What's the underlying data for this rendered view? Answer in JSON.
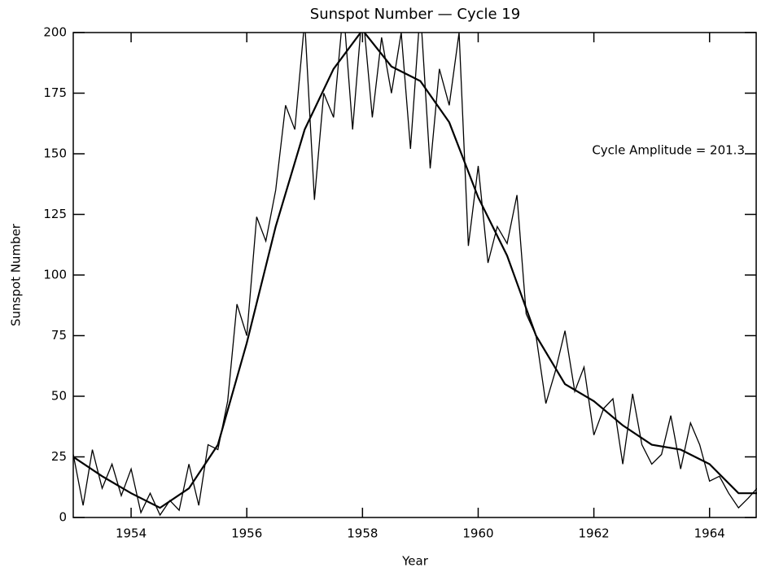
{
  "chart_data": {
    "type": "line",
    "title": "Sunspot Number — Cycle 19",
    "x_label": "Year",
    "y_label": "Sunspot Number",
    "annotation": "Cycle Amplitude = 201.3",
    "xlim": [
      1953,
      1964.82
    ],
    "xticks": [
      1954,
      1956,
      1958,
      1960,
      1962,
      1964
    ],
    "ylim": [
      0,
      200
    ],
    "yticks": [
      0,
      25,
      50,
      75,
      100,
      125,
      150,
      175,
      200
    ],
    "grid": false,
    "series": [
      {
        "color": "#000000",
        "x": [
          1953.0,
          1953.17,
          1953.33,
          1953.5,
          1953.67,
          1953.83,
          1954.0,
          1954.17,
          1954.33,
          1954.5,
          1954.67,
          1954.83,
          1955.0,
          1955.17,
          1955.33,
          1955.5,
          1955.67,
          1955.83,
          1956.0,
          1956.17,
          1956.33,
          1956.5,
          1956.67,
          1956.83,
          1957.0,
          1957.17,
          1957.33,
          1957.5,
          1957.67,
          1957.83,
          1958.0,
          1958.17,
          1958.33,
          1958.5,
          1958.67,
          1958.83,
          1959.0,
          1959.17,
          1959.33,
          1959.5,
          1959.67,
          1959.83,
          1960.0,
          1960.17,
          1960.33,
          1960.5,
          1960.67,
          1960.83,
          1961.0,
          1961.17,
          1961.33,
          1961.5,
          1961.67,
          1961.83,
          1962.0,
          1962.17,
          1962.33,
          1962.5,
          1962.67,
          1962.83,
          1963.0,
          1963.17,
          1963.33,
          1963.5,
          1963.67,
          1963.83,
          1964.0,
          1964.17,
          1964.33,
          1964.5,
          1964.67,
          1964.82
        ],
        "values": [
          26,
          5,
          28,
          12,
          22,
          9,
          20,
          2,
          10,
          1,
          7,
          3,
          22,
          5,
          30,
          28,
          48,
          88,
          75,
          124,
          114,
          135,
          170,
          160,
          205,
          131,
          175,
          165,
          210,
          160,
          210,
          165,
          198,
          175,
          200,
          152,
          210,
          144,
          185,
          170,
          200,
          112,
          145,
          105,
          120,
          113,
          133,
          84,
          75,
          47,
          60,
          77,
          52,
          62,
          34,
          45,
          49,
          22,
          51,
          30,
          22,
          26,
          42,
          20,
          39,
          30,
          15,
          17,
          10,
          4,
          8,
          12
        ]
      },
      {
        "color": "#000000",
        "x": [
          1953,
          1953.5,
          1954,
          1954.5,
          1955,
          1955.5,
          1956,
          1956.5,
          1957,
          1957.5,
          1958,
          1958.5,
          1959,
          1959.5,
          1960,
          1960.5,
          1961,
          1961.5,
          1962,
          1962.5,
          1963,
          1963.5,
          1964,
          1964.5,
          1964.82
        ],
        "values": [
          25,
          17,
          10,
          4,
          12,
          30,
          72,
          120,
          160,
          185,
          201,
          186,
          180,
          163,
          132,
          108,
          75,
          55,
          48,
          38,
          30,
          28,
          22,
          10,
          10
        ]
      }
    ]
  }
}
